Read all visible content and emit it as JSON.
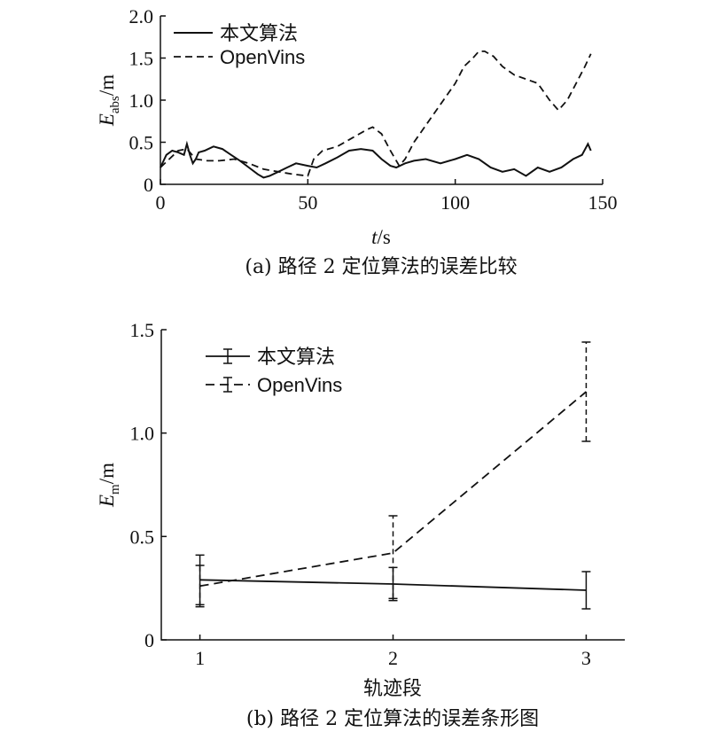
{
  "chart_data": [
    {
      "type": "line",
      "caption": "(a) 路径 2 定位算法的误差比较",
      "ylabel": {
        "main": "E",
        "sub": "abs",
        "unit": "/m"
      },
      "xlabel": {
        "main": "t",
        "unit": "/s"
      },
      "xlim": [
        0,
        150
      ],
      "ylim": [
        0,
        2.0
      ],
      "xticks": [
        "0",
        "50",
        "100",
        "150"
      ],
      "yticks": [
        "0",
        "0.5",
        "1.0",
        "1.5",
        "2.0"
      ],
      "legend_position": "top-left",
      "series": [
        {
          "name": "本文算法",
          "style": "solid",
          "x": [
            0,
            2,
            4,
            6,
            8,
            9,
            10,
            11,
            12,
            13,
            15,
            18,
            21,
            24,
            27,
            30,
            33,
            35,
            37,
            40,
            43,
            46,
            50,
            53,
            56,
            60,
            64,
            68,
            72,
            75,
            78,
            80,
            83,
            86,
            90,
            95,
            100,
            104,
            108,
            112,
            116,
            120,
            124,
            128,
            132,
            136,
            140,
            143,
            145,
            146
          ],
          "y": [
            0.2,
            0.35,
            0.4,
            0.38,
            0.35,
            0.48,
            0.35,
            0.25,
            0.3,
            0.38,
            0.4,
            0.45,
            0.42,
            0.35,
            0.28,
            0.2,
            0.12,
            0.08,
            0.1,
            0.15,
            0.2,
            0.25,
            0.22,
            0.2,
            0.25,
            0.32,
            0.4,
            0.42,
            0.4,
            0.3,
            0.22,
            0.2,
            0.25,
            0.28,
            0.3,
            0.25,
            0.3,
            0.35,
            0.3,
            0.2,
            0.15,
            0.18,
            0.1,
            0.2,
            0.15,
            0.2,
            0.3,
            0.35,
            0.48,
            0.4
          ]
        },
        {
          "name": "OpenVins",
          "style": "dashed",
          "x": [
            0,
            3,
            6,
            9,
            12,
            16,
            20,
            25,
            30,
            35,
            40,
            45,
            50,
            52,
            55,
            60,
            65,
            70,
            72,
            75,
            78,
            81,
            83,
            86,
            90,
            95,
            100,
            103,
            106,
            108,
            110,
            113,
            116,
            120,
            124,
            128,
            132,
            135,
            138,
            141,
            144,
            146
          ],
          "y": [
            0.2,
            0.3,
            0.4,
            0.42,
            0.3,
            0.28,
            0.28,
            0.3,
            0.25,
            0.18,
            0.15,
            0.12,
            0.1,
            0.3,
            0.4,
            0.45,
            0.55,
            0.65,
            0.68,
            0.6,
            0.4,
            0.22,
            0.3,
            0.5,
            0.7,
            0.95,
            1.2,
            1.4,
            1.5,
            1.58,
            1.58,
            1.52,
            1.4,
            1.3,
            1.25,
            1.2,
            1.0,
            0.88,
            1.0,
            1.2,
            1.4,
            1.55
          ]
        }
      ]
    },
    {
      "type": "line",
      "error_bars": true,
      "caption": "(b) 路径 2 定位算法的误差条形图",
      "ylabel": {
        "main": "E",
        "sub": "m",
        "unit": "/m"
      },
      "xlabel": {
        "main": "轨迹段",
        "unit": ""
      },
      "xlim": [
        0.8,
        3.2
      ],
      "ylim": [
        0,
        1.5
      ],
      "xticks": [
        "1",
        "2",
        "3"
      ],
      "yticks": [
        "0",
        "0.5",
        "1.0",
        "1.5"
      ],
      "legend_position": "top-left",
      "series": [
        {
          "name": "本文算法",
          "style": "solid",
          "x": [
            1,
            2,
            3
          ],
          "y": [
            0.29,
            0.27,
            0.24
          ],
          "lower": [
            0.17,
            0.19,
            0.15
          ],
          "upper": [
            0.41,
            0.35,
            0.33
          ]
        },
        {
          "name": "OpenVins",
          "style": "dashed",
          "x": [
            1,
            2,
            3
          ],
          "y": [
            0.26,
            0.42,
            1.2
          ],
          "lower": [
            0.16,
            0.2,
            0.96
          ],
          "upper": [
            0.36,
            0.6,
            1.44
          ]
        }
      ]
    }
  ]
}
